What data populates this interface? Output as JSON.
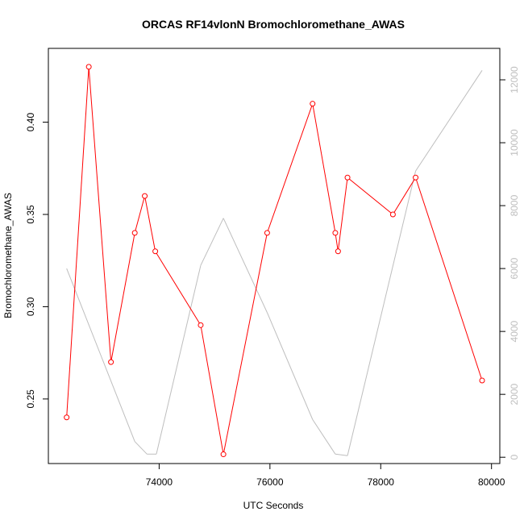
{
  "chart_data": {
    "type": "line",
    "title": "ORCAS RF14vlonN Bromochloromethane_AWAS",
    "xlabel": "UTC Seconds",
    "ylabel": "Bromochloromethane_AWAS",
    "x_ticks": [
      74000,
      76000,
      78000,
      80000
    ],
    "y_ticks": [
      0.25,
      0.3,
      0.35,
      0.4
    ],
    "y_tick_labels": [
      "0.25",
      "0.30",
      "0.35",
      "0.40"
    ],
    "y2_ticks": [
      0,
      2000,
      4000,
      6000,
      8000,
      10000,
      12000
    ],
    "xlim": [
      72000,
      80150
    ],
    "ylim": [
      0.215,
      0.44
    ],
    "y2lim": [
      -200,
      13000
    ],
    "grid": false,
    "series": [
      {
        "axis": "left",
        "color": "#ff0000",
        "marker": "open-circle",
        "x": [
          72330,
          72730,
          73130,
          73560,
          73740,
          73930,
          74750,
          75160,
          75950,
          76770,
          77180,
          77230,
          77400,
          78220,
          78630,
          79830
        ],
        "y": [
          0.24,
          0.43,
          0.27,
          0.34,
          0.36,
          0.33,
          0.29,
          0.22,
          0.34,
          0.41,
          0.34,
          0.33,
          0.37,
          0.35,
          0.37,
          0.26
        ]
      },
      {
        "axis": "right",
        "color": "#bebebe",
        "marker": "none",
        "x": [
          72330,
          73560,
          73780,
          73950,
          74750,
          75160,
          75950,
          76770,
          77180,
          77400,
          78630,
          79830
        ],
        "y": [
          6000,
          500,
          100,
          100,
          6100,
          7600,
          4600,
          1200,
          100,
          50,
          9100,
          12300
        ]
      }
    ]
  }
}
